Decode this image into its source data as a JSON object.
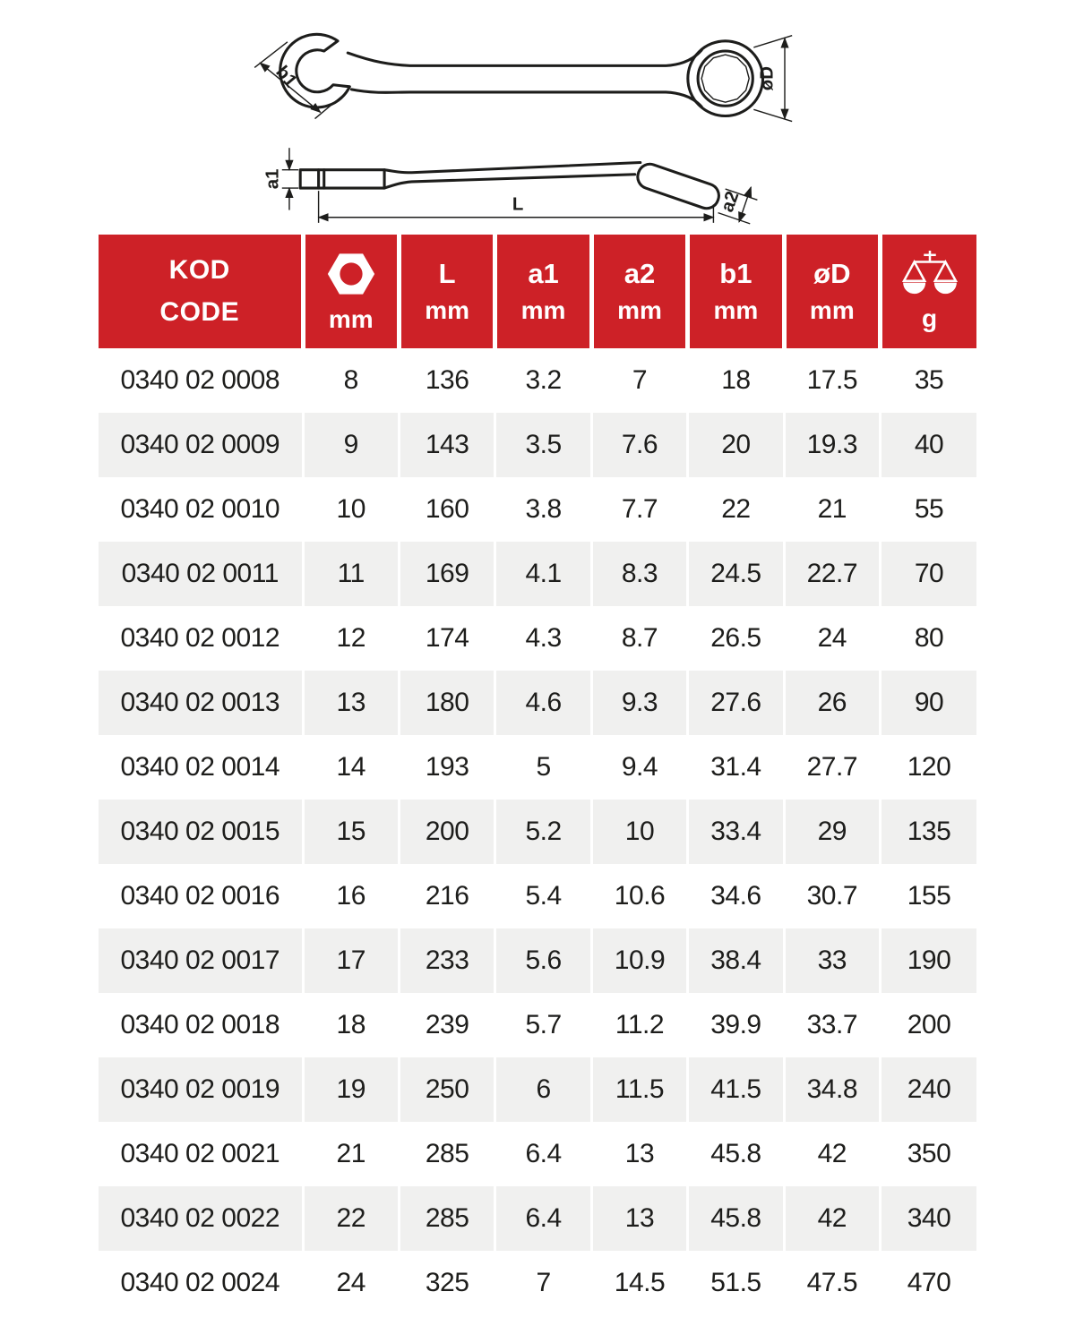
{
  "diagram": {
    "name": "combination-wrench-technical-drawing",
    "labels": {
      "b1": "b1",
      "oD": "øD",
      "a1": "a1",
      "a2": "a2",
      "L": "L"
    }
  },
  "table": {
    "header": {
      "code_title_line1": "KOD",
      "code_title_line2": "CODE",
      "columns": [
        {
          "icon": "hex-nut-icon",
          "label": "",
          "unit": "mm"
        },
        {
          "label": "L",
          "unit": "mm"
        },
        {
          "label": "a1",
          "unit": "mm"
        },
        {
          "label": "a2",
          "unit": "mm"
        },
        {
          "label": "b1",
          "unit": "mm"
        },
        {
          "label": "øD",
          "unit": "mm"
        },
        {
          "icon": "scale-icon",
          "label": "",
          "unit": "g"
        }
      ]
    },
    "rows": [
      [
        "0340 02 0008",
        "8",
        "136",
        "3.2",
        "7",
        "18",
        "17.5",
        "35"
      ],
      [
        "0340 02 0009",
        "9",
        "143",
        "3.5",
        "7.6",
        "20",
        "19.3",
        "40"
      ],
      [
        "0340 02 0010",
        "10",
        "160",
        "3.8",
        "7.7",
        "22",
        "21",
        "55"
      ],
      [
        "0340 02 0011",
        "11",
        "169",
        "4.1",
        "8.3",
        "24.5",
        "22.7",
        "70"
      ],
      [
        "0340 02 0012",
        "12",
        "174",
        "4.3",
        "8.7",
        "26.5",
        "24",
        "80"
      ],
      [
        "0340 02 0013",
        "13",
        "180",
        "4.6",
        "9.3",
        "27.6",
        "26",
        "90"
      ],
      [
        "0340 02 0014",
        "14",
        "193",
        "5",
        "9.4",
        "31.4",
        "27.7",
        "120"
      ],
      [
        "0340 02 0015",
        "15",
        "200",
        "5.2",
        "10",
        "33.4",
        "29",
        "135"
      ],
      [
        "0340 02 0016",
        "16",
        "216",
        "5.4",
        "10.6",
        "34.6",
        "30.7",
        "155"
      ],
      [
        "0340 02 0017",
        "17",
        "233",
        "5.6",
        "10.9",
        "38.4",
        "33",
        "190"
      ],
      [
        "0340 02 0018",
        "18",
        "239",
        "5.7",
        "11.2",
        "39.9",
        "33.7",
        "200"
      ],
      [
        "0340 02 0019",
        "19",
        "250",
        "6",
        "11.5",
        "41.5",
        "34.8",
        "240"
      ],
      [
        "0340 02 0021",
        "21",
        "285",
        "6.4",
        "13",
        "45.8",
        "42",
        "350"
      ],
      [
        "0340 02 0022",
        "22",
        "285",
        "6.4",
        "13",
        "45.8",
        "42",
        "340"
      ],
      [
        "0340 02 0024",
        "24",
        "325",
        "7",
        "14.5",
        "51.5",
        "47.5",
        "470"
      ]
    ]
  },
  "colors": {
    "header_red": "#cd2127",
    "row_alt_gray": "#f0f0ef",
    "text_dark": "#1d1d1b",
    "white": "#ffffff"
  }
}
